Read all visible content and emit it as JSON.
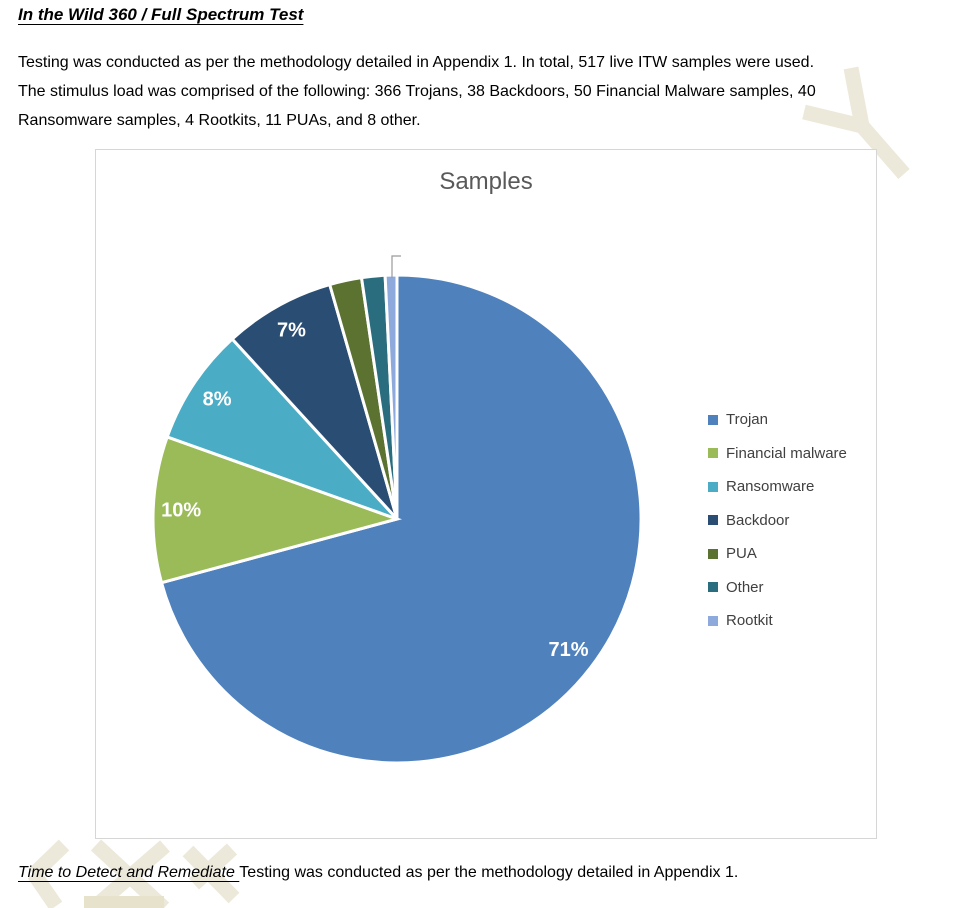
{
  "page": {
    "heading": "In the Wild 360 / Full Spectrum Test",
    "paragraph_lines": [
      "Testing was conducted as per the methodology detailed in Appendix 1. In total, 517 live ITW samples were used.",
      "The stimulus load was comprised of the following: 366 Trojans, 38 Backdoors, 50 Financial Malware samples, 40",
      "Ransomware samples, 4 Rootkits, 11 PUAs, and 8 other."
    ],
    "footer_heading": "Time to Detect and Remediate ",
    "footer_text": "Testing was conducted as per the methodology detailed in Appendix 1."
  },
  "chart_data": {
    "type": "pie",
    "title": "Samples",
    "total": 517,
    "start_angle_deg": 0,
    "direction": "clockwise",
    "legend_position": "right",
    "label_color": "#FFFFFF",
    "title_color": "#595959",
    "slices": [
      {
        "name": "Trojan",
        "value": 366,
        "pct_label": "71%",
        "color": "#4F81BD"
      },
      {
        "name": "Financial malware",
        "value": 50,
        "pct_label": "10%",
        "color": "#9BBB59"
      },
      {
        "name": "Ransomware",
        "value": 40,
        "pct_label": "8%",
        "color": "#4BACC6"
      },
      {
        "name": "Backdoor",
        "value": 38,
        "pct_label": "7%",
        "color": "#2A4D74"
      },
      {
        "name": "PUA",
        "value": 11,
        "pct_label": "",
        "color": "#5B7230"
      },
      {
        "name": "Other",
        "value": 8,
        "pct_label": "",
        "color": "#2A6D7E"
      },
      {
        "name": "Rootkit",
        "value": 4,
        "pct_label": "",
        "color": "#8EA9DB"
      }
    ],
    "annotations": [
      {
        "type": "leader-line",
        "slice": "Rootkit"
      }
    ]
  }
}
